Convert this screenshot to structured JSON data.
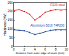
{
  "chart_data": {
    "type": "line",
    "x_label": "Distance from outer edge of seam (mm)",
    "y_label": "Hardness (HV)",
    "x": [
      0,
      1,
      2,
      3,
      4,
      5,
      6,
      7,
      8,
      9,
      10
    ],
    "series": [
      {
        "name": "P220 steel",
        "color": "#e02020",
        "marker": "circle",
        "values": [
          205,
          210,
          200,
          185,
          150,
          170,
          195,
          205,
          210,
          208,
          210
        ]
      },
      {
        "name": "Aluminium 6016 T4P200",
        "color": "#1f4e9c",
        "marker": "circle",
        "values": [
          95,
          93,
          90,
          80,
          68,
          75,
          85,
          92,
          95,
          94,
          95
        ]
      }
    ],
    "xlim": [
      0,
      10
    ],
    "xticks": [
      0,
      2,
      4,
      6,
      8,
      10
    ],
    "ylim": [
      0,
      250
    ],
    "yticks": [
      0,
      50,
      100,
      150,
      200,
      250
    ],
    "grid": false
  }
}
